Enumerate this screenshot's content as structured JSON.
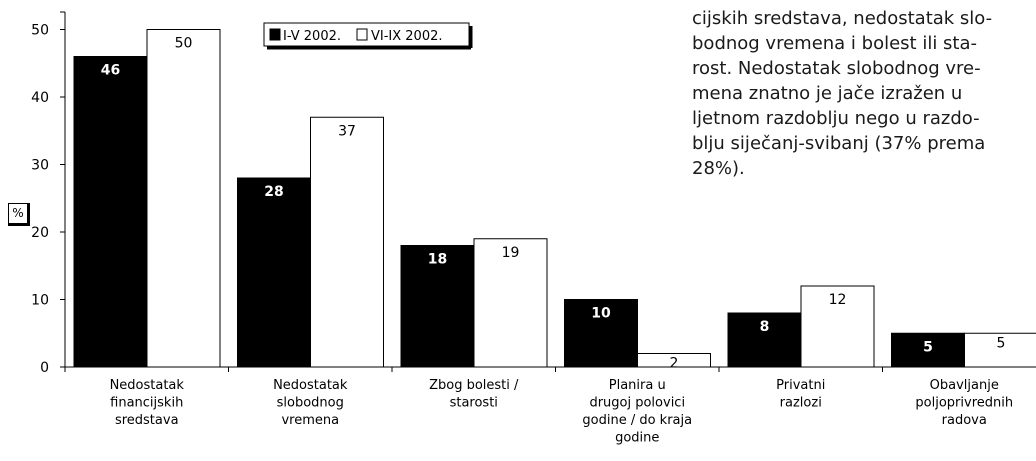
{
  "chart_data": {
    "type": "bar",
    "categories": [
      [
        "Nedostatak",
        "financijskih",
        "sredstava"
      ],
      [
        "Nedostatak",
        "slobodnog",
        "vremena"
      ],
      [
        "Zbog bolesti /",
        "starosti"
      ],
      [
        "Planira u",
        "drugoj polovici",
        "godine / do kraja",
        "godine"
      ],
      [
        "Privatni",
        "razlozi"
      ],
      [
        "Obavljanje",
        "poljoprivrednih",
        "radova"
      ]
    ],
    "series": [
      {
        "name": "I-V 2002.",
        "values": [
          46,
          28,
          18,
          10,
          8,
          5
        ],
        "color": "#000000",
        "label_color": "#ffffff"
      },
      {
        "name": "VI-IX 2002.",
        "values": [
          50,
          37,
          19,
          2,
          12,
          5
        ],
        "color": "#ffffff",
        "label_color": "#000000"
      }
    ],
    "data_labels": [
      [
        "46",
        "28",
        "18",
        "10",
        "8",
        "5"
      ],
      [
        "50",
        "37",
        "19",
        "2",
        "12",
        "5"
      ]
    ],
    "yticks": [
      0,
      10,
      20,
      30,
      40,
      50
    ],
    "ylim": [
      0,
      57
    ],
    "ylabel": "%",
    "legend_position": "top",
    "grid": false
  },
  "side_text": {
    "lines": [
      "cijskih sredstava, nedostatak slo-",
      "bodnog vremena i bolest ili sta-",
      "rost. Nedostatak slobodnog vre-",
      "mena znatno je jače izražen u",
      "ljetnom razdoblju nego u razdo-",
      "blju siječanj-svibanj (37% prema",
      "28%)."
    ]
  }
}
